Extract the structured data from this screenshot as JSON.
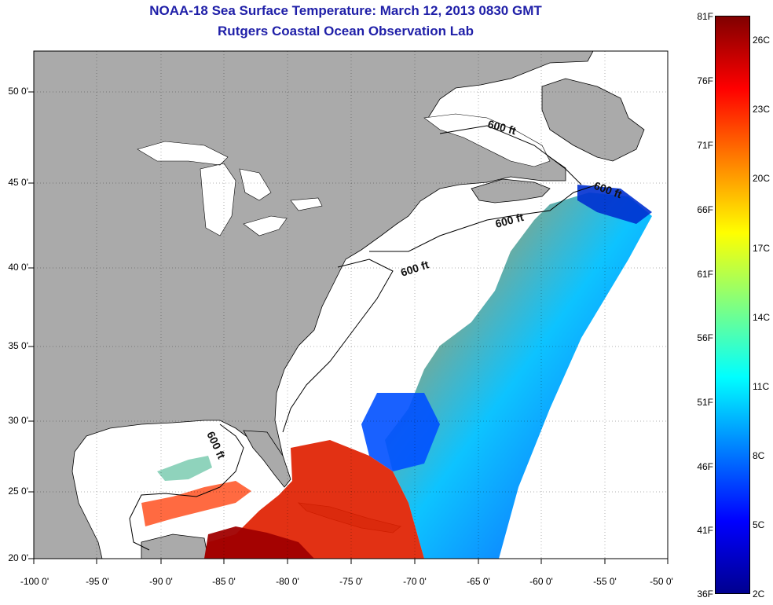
{
  "title_line1": "NOAA-18 Sea Surface Temperature:  March 12, 2013 0830 GMT",
  "title_line2": "Rutgers Coastal Ocean Observation Lab",
  "map": {
    "lon_range": [
      -100,
      -50
    ],
    "lat_range": [
      20,
      52.5
    ],
    "land_color": "#aaaaaa",
    "water_no_data_color": "#ffffff",
    "grid": "dotted",
    "lat_ticks": [
      "50 0'",
      "45 0'",
      "40 0'",
      "35 0'",
      "30 0'",
      "25 0'",
      "20 0'"
    ],
    "lon_ticks": [
      "-100 0'",
      "-95 0'",
      "-90 0'",
      "-85 0'",
      "-80 0'",
      "-75 0'",
      "-70 0'",
      "-65 0'",
      "-60 0'",
      "-55 0'",
      "-50 0'"
    ],
    "contour_labels": [
      "600 ft",
      "600 ft",
      "600 ft",
      "600 ft",
      "600 ft"
    ]
  },
  "colorbar": {
    "fahrenheit_labels": [
      "81F",
      "76F",
      "71F",
      "66F",
      "61F",
      "56F",
      "51F",
      "46F",
      "41F",
      "36F"
    ],
    "celsius_labels": [
      "26C",
      "23C",
      "20C",
      "17C",
      "14C",
      "11C",
      "8C",
      "5C",
      "2C"
    ],
    "colors": [
      "#00008f",
      "#0000ff",
      "#0080ff",
      "#00ffff",
      "#80ff80",
      "#ffff00",
      "#ff8000",
      "#ff0000",
      "#800000"
    ]
  }
}
